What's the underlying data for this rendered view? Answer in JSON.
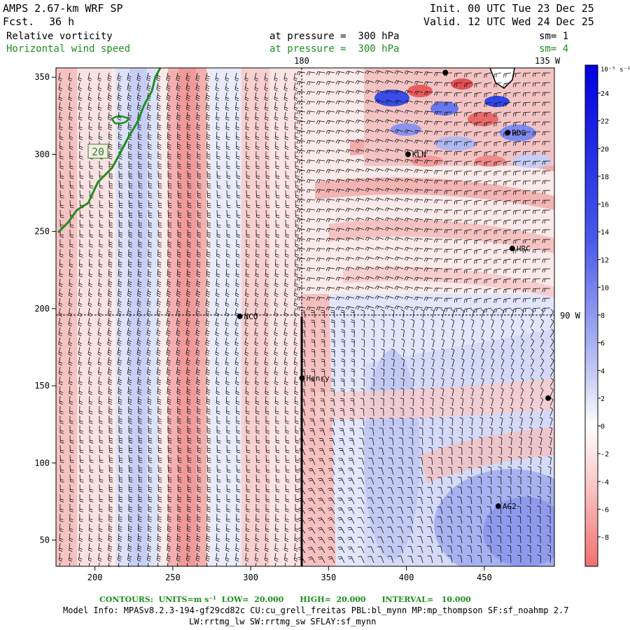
{
  "header": {
    "model_title": "AMPS 2.67-km WRF SP",
    "forecast_label": "Fcst.",
    "forecast_hours": "36 h",
    "init": "Init. 00 UTC Tue 23 Dec 25",
    "valid": "Valid. 12 UTC Wed 24 Dec 25",
    "field1": {
      "name": "Relative vorticity",
      "pressure": "at pressure =  300 hPa",
      "sm": "sm= 1"
    },
    "field2": {
      "name": "Horizontal wind speed",
      "pressure": "at pressure =  300 hPa",
      "sm": "sm= 4"
    }
  },
  "colors": {
    "green": "#1f8f1f",
    "negative": "#f07070",
    "positive": "#2020e0"
  },
  "map": {
    "x_ticks": [
      "200",
      "250",
      "300",
      "350",
      "400",
      "450"
    ],
    "x_tick_values": [
      200,
      250,
      300,
      350,
      400,
      450
    ],
    "y_ticks": [
      "50",
      "100",
      "150",
      "200",
      "250",
      "300",
      "350"
    ],
    "y_tick_values": [
      50,
      100,
      150,
      200,
      250,
      300,
      350
    ],
    "xlim": [
      175,
      495
    ],
    "ylim": [
      33,
      356
    ],
    "meridian_180": "180",
    "meridian_135w": "135 W",
    "meridian_90w": "90 W",
    "contour_label": "20",
    "stations": [
      {
        "name": "NCO",
        "x": 293,
        "y": 195
      },
      {
        "name": "Henry",
        "x": 333,
        "y": 155
      },
      {
        "name": "KLN",
        "x": 401,
        "y": 300
      },
      {
        "name": "RDG",
        "x": 465,
        "y": 314
      },
      {
        "name": "HRC",
        "x": 468,
        "y": 239
      },
      {
        "name": "AG2",
        "x": 459,
        "y": 72
      },
      {
        "name": "",
        "x": 491,
        "y": 142
      },
      {
        "name": "",
        "x": 425,
        "y": 353
      }
    ]
  },
  "colorbar": {
    "units": "10⁻⁵ s⁻¹",
    "labels": [
      "24",
      "22",
      "20",
      "18",
      "16",
      "14",
      "12",
      "10",
      "8",
      "6",
      "4",
      "2",
      "0",
      "-2",
      "-4",
      "-6",
      "-8"
    ],
    "levels": [
      24,
      22,
      20,
      18,
      16,
      14,
      12,
      10,
      8,
      6,
      4,
      2,
      0,
      -2,
      -4,
      -6,
      -8
    ]
  },
  "footer": {
    "contours": "CONTOURS:  UNITS=m s⁻¹  LOW=  20.000      HIGH=  20.000      INTERVAL=   10.000",
    "model_info": "Model Info: MPASv8.2.3-194-gf29cd82c CU:cu_grell_freitas PBL:bl_mynn MP:mp_thompson SF:sf_noahmp 2.7",
    "physics": "LW:rrtmg_lw SW:rrtmg_sw SFLAY:sf_mynn"
  }
}
